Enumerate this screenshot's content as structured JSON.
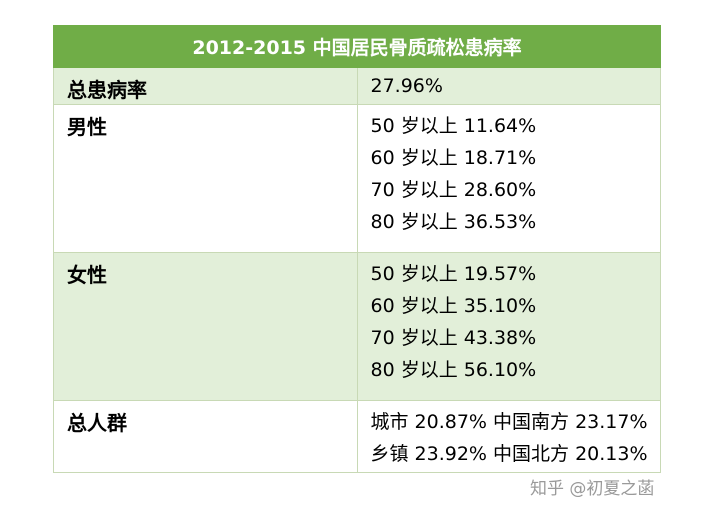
{
  "table": {
    "title": "2012-2015 中国居民骨质疏松患病率",
    "rows": {
      "total": {
        "label": "总患病率",
        "lines": [
          "27.96%"
        ]
      },
      "male": {
        "label": "男性",
        "lines": [
          "50 岁以上 11.64%",
          "60 岁以上 18.71%",
          "70 岁以上 28.60%",
          "80 岁以上 36.53%"
        ]
      },
      "female": {
        "label": "女性",
        "lines": [
          "50 岁以上 19.57%",
          "60 岁以上 35.10%",
          "70 岁以上 43.38%",
          "80 岁以上 56.10%"
        ]
      },
      "all": {
        "label": "总人群",
        "lines": [
          "城市 20.87% 中国南方 23.17%",
          "乡镇 23.92%  中国北方 20.13%"
        ]
      }
    },
    "colors": {
      "header": "#70ad47",
      "shaded": "#e2efd9",
      "border": "#c8d9b5"
    }
  },
  "watermark": "知乎 @初夏之菡"
}
